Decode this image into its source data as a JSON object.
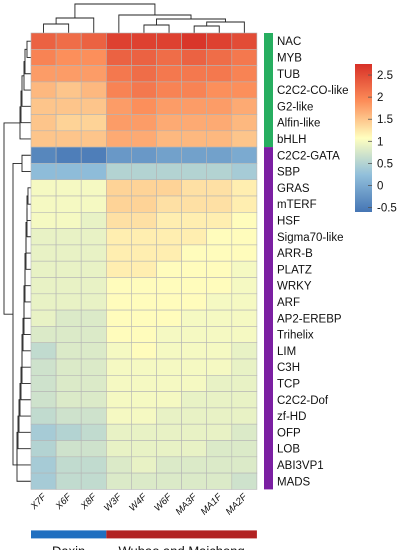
{
  "chart_data": {
    "type": "heatmap",
    "columns": [
      "X7F",
      "X6F",
      "X8F",
      "W3F",
      "W4F",
      "W6F",
      "MA3F",
      "MA1F",
      "MA2F"
    ],
    "rows": [
      "NAC",
      "MYB",
      "TUB",
      "C2C2-CO-like",
      "G2-like",
      "Alfin-like",
      "bHLH",
      "C2C2-GATA",
      "SBP",
      "GRAS",
      "mTERF",
      "HSF",
      "Sigma70-like",
      "ARR-B",
      "PLATZ",
      "WRKY",
      "ARF",
      "AP2-EREBP",
      "Trihelix",
      "LIM",
      "C3H",
      "TCP",
      "C2C2-Dof",
      "zf-HD",
      "OFP",
      "LOB",
      "ABI3VP1",
      "MADS"
    ],
    "values": [
      [
        2.3,
        2.2,
        2.3,
        2.6,
        2.6,
        2.6,
        2.7,
        2.6,
        2.5
      ],
      [
        2.0,
        1.9,
        1.9,
        2.3,
        2.3,
        2.2,
        2.3,
        2.2,
        2.1
      ],
      [
        1.8,
        1.8,
        1.8,
        2.1,
        2.2,
        2.1,
        2.1,
        2.1,
        2.0
      ],
      [
        1.6,
        1.5,
        1.6,
        2.0,
        2.1,
        2.0,
        2.0,
        1.9,
        1.9
      ],
      [
        1.5,
        1.5,
        1.5,
        1.8,
        1.9,
        1.8,
        1.8,
        1.8,
        1.7
      ],
      [
        1.5,
        1.4,
        1.4,
        1.8,
        1.8,
        1.7,
        1.7,
        1.7,
        1.6
      ],
      [
        1.5,
        1.5,
        1.5,
        1.7,
        1.7,
        1.6,
        1.6,
        1.6,
        1.5
      ],
      [
        -0.4,
        -0.5,
        -0.5,
        -0.2,
        -0.2,
        -0.1,
        -0.1,
        -0.1,
        0.0
      ],
      [
        0.2,
        0.2,
        0.2,
        0.5,
        0.5,
        0.5,
        0.5,
        0.5,
        0.4
      ],
      [
        1.0,
        1.0,
        1.0,
        1.4,
        1.4,
        1.4,
        1.3,
        1.3,
        1.2
      ],
      [
        1.0,
        1.0,
        1.0,
        1.4,
        1.4,
        1.3,
        1.3,
        1.3,
        1.2
      ],
      [
        1.0,
        1.0,
        0.9,
        1.3,
        1.3,
        1.2,
        1.2,
        1.2,
        1.1
      ],
      [
        0.9,
        0.9,
        0.9,
        1.2,
        1.2,
        1.2,
        1.2,
        1.1,
        1.1
      ],
      [
        0.9,
        0.9,
        0.9,
        1.2,
        1.2,
        1.2,
        1.1,
        1.1,
        1.1
      ],
      [
        0.9,
        0.9,
        0.9,
        1.2,
        1.2,
        1.1,
        1.1,
        1.1,
        1.0
      ],
      [
        0.9,
        0.9,
        0.9,
        1.1,
        1.1,
        1.1,
        1.1,
        1.1,
        1.0
      ],
      [
        0.9,
        0.9,
        0.9,
        1.1,
        1.1,
        1.1,
        1.1,
        1.0,
        1.0
      ],
      [
        0.9,
        0.8,
        0.8,
        1.1,
        1.1,
        1.1,
        1.0,
        1.0,
        1.0
      ],
      [
        0.8,
        0.8,
        0.8,
        1.1,
        1.1,
        1.0,
        1.0,
        1.0,
        1.0
      ],
      [
        0.6,
        0.8,
        0.8,
        1.0,
        1.1,
        1.0,
        1.0,
        1.0,
        0.9
      ],
      [
        0.7,
        0.8,
        0.8,
        1.0,
        1.0,
        1.0,
        1.0,
        1.0,
        0.9
      ],
      [
        0.7,
        0.8,
        0.8,
        1.0,
        1.0,
        1.0,
        1.0,
        0.9,
        0.9
      ],
      [
        0.7,
        0.8,
        0.8,
        1.0,
        1.0,
        1.0,
        0.9,
        0.9,
        0.9
      ],
      [
        0.6,
        0.7,
        0.7,
        1.0,
        1.0,
        0.9,
        0.9,
        0.9,
        0.9
      ],
      [
        0.4,
        0.5,
        0.6,
        0.9,
        0.9,
        0.9,
        0.9,
        0.9,
        0.8
      ],
      [
        0.5,
        0.7,
        0.7,
        0.9,
        0.9,
        0.9,
        0.9,
        0.8,
        0.8
      ],
      [
        0.4,
        0.6,
        0.6,
        0.8,
        0.9,
        0.8,
        0.8,
        0.8,
        0.8
      ],
      [
        0.4,
        0.6,
        0.6,
        0.8,
        0.8,
        0.8,
        0.8,
        0.8,
        0.7
      ]
    ],
    "color_scale": {
      "min": -0.6,
      "max": 2.75,
      "stops": [
        "#4575b4",
        "#91bfdb",
        "#ffffbf",
        "#fc8d59",
        "#d73027"
      ]
    },
    "colorbar_ticks": [
      2.5,
      2,
      1.5,
      1,
      0.5,
      0,
      -0.5
    ],
    "row_groups": [
      {
        "rows": [
          0,
          6
        ],
        "color": "#27ae60"
      },
      {
        "rows": [
          7,
          27
        ],
        "color": "#7b1fa2"
      }
    ],
    "column_groups": [
      {
        "label": "Daxin",
        "cols": [
          0,
          2
        ],
        "color": "#1f6fc0"
      },
      {
        "label": "Wubao and Maichong",
        "cols": [
          3,
          8
        ],
        "color": "#b22222"
      }
    ]
  }
}
